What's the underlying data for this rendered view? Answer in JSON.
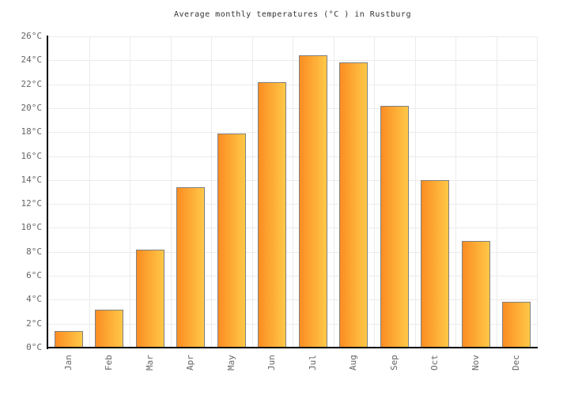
{
  "chart_data": {
    "type": "bar",
    "title": "Average monthly temperatures (°C ) in Rustburg",
    "categories": [
      "Jan",
      "Feb",
      "Mar",
      "Apr",
      "May",
      "Jun",
      "Jul",
      "Aug",
      "Sep",
      "Oct",
      "Nov",
      "Dec"
    ],
    "values": [
      1.4,
      3.2,
      8.2,
      13.4,
      17.9,
      22.2,
      24.4,
      23.8,
      20.2,
      14.0,
      8.9,
      3.8
    ],
    "unit": "°C",
    "xlabel": "",
    "ylabel": "",
    "ylim": [
      0,
      26
    ],
    "ytick_step": 2,
    "y_tick_labels": [
      "0°C",
      "2°C",
      "4°C",
      "6°C",
      "8°C",
      "10°C",
      "12°C",
      "14°C",
      "16°C",
      "18°C",
      "20°C",
      "22°C",
      "24°C",
      "26°C"
    ],
    "grid": "on",
    "legend": "none",
    "colors": {
      "bar_gradient_left": "#FB8D23",
      "bar_gradient_right": "#FFC847",
      "bar_border": "#808080",
      "gridline": "#EBEBEB",
      "axis": "#000000",
      "tick_label": "#666666",
      "title": "#333333",
      "background": "#FFFFFF"
    }
  }
}
